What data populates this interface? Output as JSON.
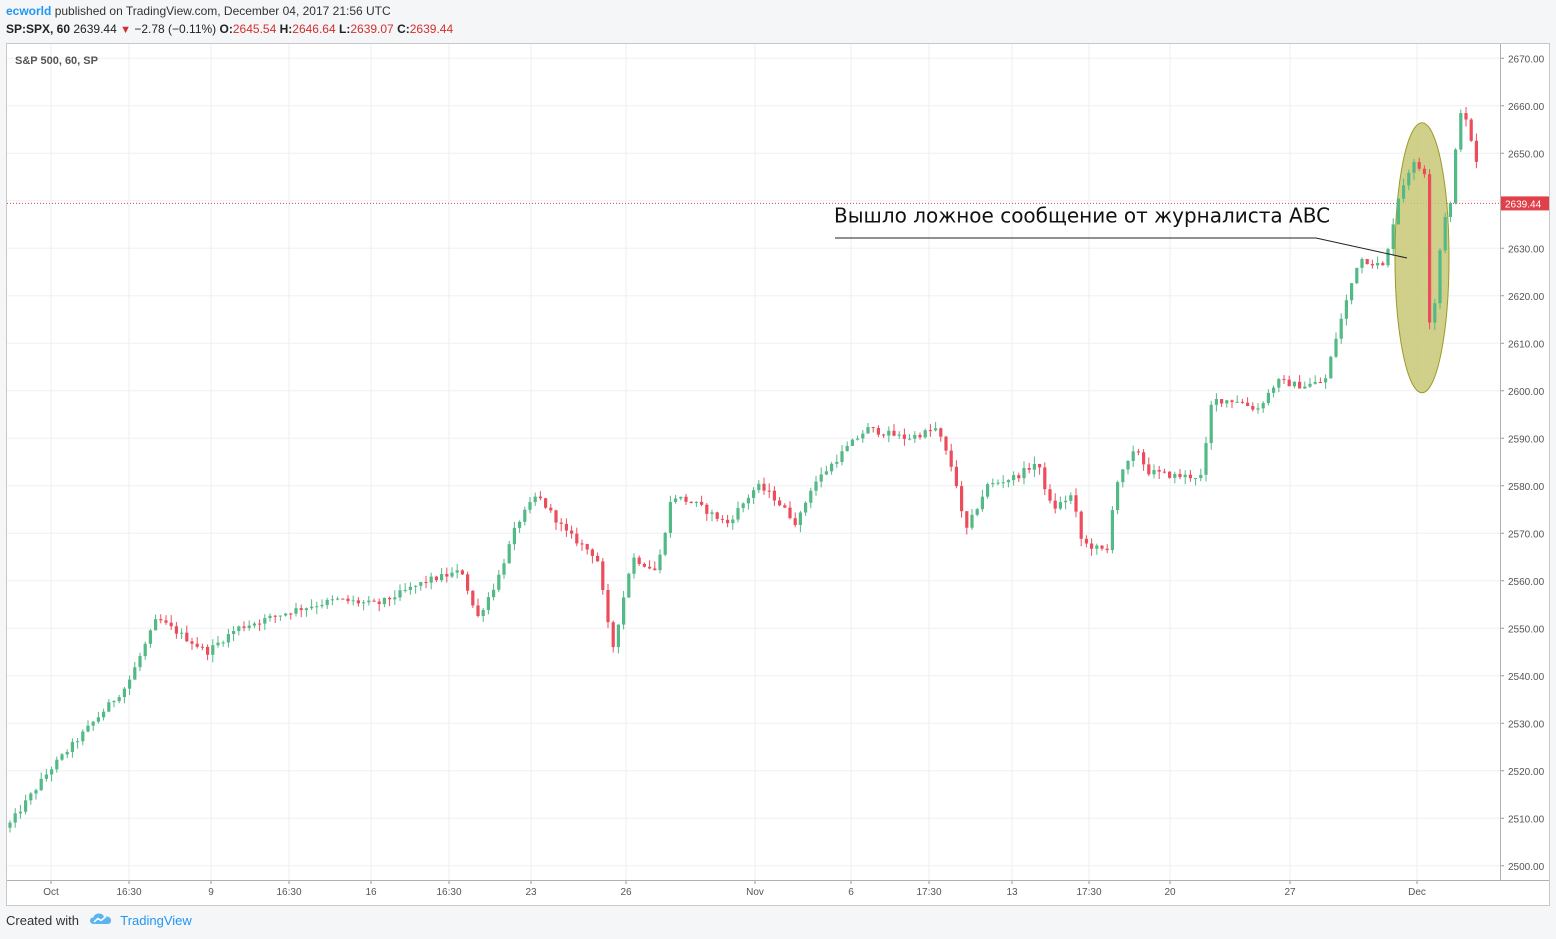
{
  "header": {
    "user": "ecworld",
    "published": "published on TradingView.com, December 04, 2017 21:56 UTC",
    "symbol": "SP:SPX, 60",
    "last": "2639.44",
    "change": "−2.78 (−0.11%)",
    "open_label": "O:",
    "open": "2645.54",
    "high_label": "H:",
    "high": "2646.64",
    "low_label": "L:",
    "low": "2639.07",
    "close_label": "C:",
    "close": "2639.44"
  },
  "chart_data": {
    "type": "candlestick",
    "title": "S&P 500, 60, SP",
    "ylim": [
      2497,
      2673
    ],
    "y_ticks": [
      2500,
      2510,
      2520,
      2530,
      2540,
      2550,
      2560,
      2570,
      2580,
      2590,
      2600,
      2610,
      2620,
      2630,
      2640,
      2650,
      2660,
      2670
    ],
    "x_labels": [
      "Oct",
      "16:30",
      "9",
      "16:30",
      "16",
      "16:30",
      "23",
      "26",
      "Nov",
      "6",
      "17:30",
      "13",
      "17:30",
      "20",
      "27",
      "Dec"
    ],
    "last_price": 2639.44,
    "last_price_label": "2639.44",
    "grid": true,
    "colors": {
      "up": "#53b987",
      "down": "#eb4d5c",
      "last_line": "#e0404a",
      "ellipse_fill": "#c8c877",
      "ellipse_stroke": "#9a9a2a"
    },
    "annotation": "Вышло ложное сообщение от журналиста ABC",
    "path": [
      [
        0,
        2508
      ],
      [
        42,
        2520
      ],
      [
        120,
        2538
      ],
      [
        150,
        2552
      ],
      [
        200,
        2545
      ],
      [
        230,
        2550
      ],
      [
        290,
        2554
      ],
      [
        330,
        2556
      ],
      [
        370,
        2555
      ],
      [
        420,
        2560
      ],
      [
        455,
        2562
      ],
      [
        470,
        2552
      ],
      [
        490,
        2560
      ],
      [
        510,
        2572
      ],
      [
        530,
        2578
      ],
      [
        560,
        2570
      ],
      [
        590,
        2565
      ],
      [
        600,
        2552
      ],
      [
        605,
        2545
      ],
      [
        625,
        2565
      ],
      [
        650,
        2562
      ],
      [
        665,
        2578
      ],
      [
        690,
        2576
      ],
      [
        720,
        2572
      ],
      [
        750,
        2580
      ],
      [
        765,
        2578
      ],
      [
        790,
        2572
      ],
      [
        805,
        2580
      ],
      [
        840,
        2588
      ],
      [
        860,
        2592
      ],
      [
        900,
        2590
      ],
      [
        930,
        2592
      ],
      [
        948,
        2582
      ],
      [
        958,
        2570
      ],
      [
        980,
        2580
      ],
      [
        1010,
        2582
      ],
      [
        1030,
        2585
      ],
      [
        1045,
        2575
      ],
      [
        1065,
        2578
      ],
      [
        1075,
        2568
      ],
      [
        1100,
        2566
      ],
      [
        1108,
        2580
      ],
      [
        1130,
        2588
      ],
      [
        1140,
        2583
      ],
      [
        1170,
        2582
      ],
      [
        1195,
        2582
      ],
      [
        1205,
        2598
      ],
      [
        1230,
        2598
      ],
      [
        1250,
        2596
      ],
      [
        1270,
        2602
      ],
      [
        1295,
        2601
      ],
      [
        1318,
        2602
      ],
      [
        1330,
        2612
      ],
      [
        1352,
        2628
      ],
      [
        1378,
        2626
      ],
      [
        1390,
        2640
      ],
      [
        1405,
        2648
      ],
      [
        1418,
        2646
      ],
      [
        1421,
        2615
      ],
      [
        1426,
        2615
      ],
      [
        1436,
        2636
      ],
      [
        1445,
        2640
      ],
      [
        1452,
        2660
      ],
      [
        1462,
        2655
      ],
      [
        1478,
        2639.44
      ]
    ]
  },
  "footer": {
    "created_with": "Created with",
    "brand": "TradingView"
  }
}
